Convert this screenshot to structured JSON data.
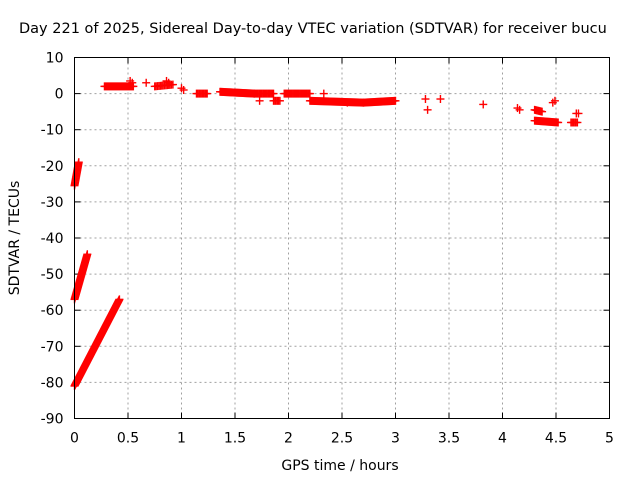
{
  "chart_data": {
    "type": "scatter",
    "title": "Day 221 of 2025, Sidereal Day-to-day VTEC variation (SDTVAR) for receiver bucu",
    "xlabel": "GPS time / hours",
    "ylabel": "SDTVAR / TECUs",
    "xlim": [
      0,
      5
    ],
    "ylim": [
      -90,
      10
    ],
    "xticks": [
      0,
      0.5,
      1,
      1.5,
      2,
      2.5,
      3,
      3.5,
      4,
      4.5,
      5
    ],
    "xtick_labels": [
      "0",
      "0.5",
      "1",
      "1.5",
      "2",
      "2.5",
      "3",
      "3.5",
      "4",
      "4.5",
      "5"
    ],
    "yticks": [
      10,
      0,
      -10,
      -20,
      -30,
      -40,
      -50,
      -60,
      -70,
      -80,
      -90
    ],
    "ytick_labels": [
      "10",
      "0",
      "-10",
      "-20",
      "-30",
      "-40",
      "-50",
      "-60",
      "-70",
      "-80",
      "-90"
    ],
    "grid": true,
    "marker": "+",
    "color": "#ff0000",
    "series": [
      {
        "name": "SDTVAR",
        "segments": [
          {
            "x0": 0.0,
            "y0": -25.5,
            "x1": 0.04,
            "y1": -19.0,
            "n": 22
          },
          {
            "x0": 0.0,
            "y0": -57.0,
            "x1": 0.12,
            "y1": -44.5,
            "n": 45
          },
          {
            "x0": 0.0,
            "y0": -81.0,
            "x1": 0.42,
            "y1": -57.0,
            "n": 170
          },
          {
            "x0": 0.28,
            "y0": 2.0,
            "x1": 0.55,
            "y1": 2.0,
            "n": 30
          },
          {
            "x0": 0.75,
            "y0": 2.0,
            "x1": 0.92,
            "y1": 2.5,
            "n": 14
          },
          {
            "x0": 1.14,
            "y0": 0.0,
            "x1": 1.24,
            "y1": 0.0,
            "n": 10
          },
          {
            "x0": 1.36,
            "y0": 0.5,
            "x1": 1.68,
            "y1": 0.0,
            "n": 40
          },
          {
            "x0": 1.68,
            "y0": 0.0,
            "x1": 1.86,
            "y1": 0.0,
            "n": 18
          },
          {
            "x0": 1.86,
            "y0": -2.0,
            "x1": 1.92,
            "y1": -2.0,
            "n": 6
          },
          {
            "x0": 1.96,
            "y0": 0.0,
            "x1": 2.2,
            "y1": 0.0,
            "n": 25
          },
          {
            "x0": 2.2,
            "y0": -2.0,
            "x1": 2.7,
            "y1": -2.5,
            "n": 55
          },
          {
            "x0": 2.7,
            "y0": -2.5,
            "x1": 3.0,
            "y1": -2.0,
            "n": 35
          },
          {
            "x0": 4.3,
            "y0": -7.5,
            "x1": 4.52,
            "y1": -8.0,
            "n": 25
          },
          {
            "x0": 4.3,
            "y0": -4.5,
            "x1": 4.37,
            "y1": -5.0,
            "n": 8
          },
          {
            "x0": 4.64,
            "y0": -8.0,
            "x1": 4.7,
            "y1": -8.0,
            "n": 6
          }
        ],
        "points": [
          [
            0.54,
            3.0
          ],
          [
            0.52,
            3.5
          ],
          [
            0.67,
            3.0
          ],
          [
            0.86,
            3.5
          ],
          [
            0.88,
            3.0
          ],
          [
            1.0,
            1.5
          ],
          [
            1.02,
            1.0
          ],
          [
            1.73,
            -2.0
          ],
          [
            2.33,
            0.0
          ],
          [
            2.55,
            -2.5
          ],
          [
            3.28,
            -1.5
          ],
          [
            3.3,
            -4.5
          ],
          [
            3.42,
            -1.5
          ],
          [
            3.82,
            -3.0
          ],
          [
            4.14,
            -4.0
          ],
          [
            4.16,
            -4.5
          ],
          [
            4.47,
            -2.5
          ],
          [
            4.49,
            -2.0
          ],
          [
            4.69,
            -5.5
          ],
          [
            4.71,
            -5.5
          ]
        ]
      }
    ]
  }
}
